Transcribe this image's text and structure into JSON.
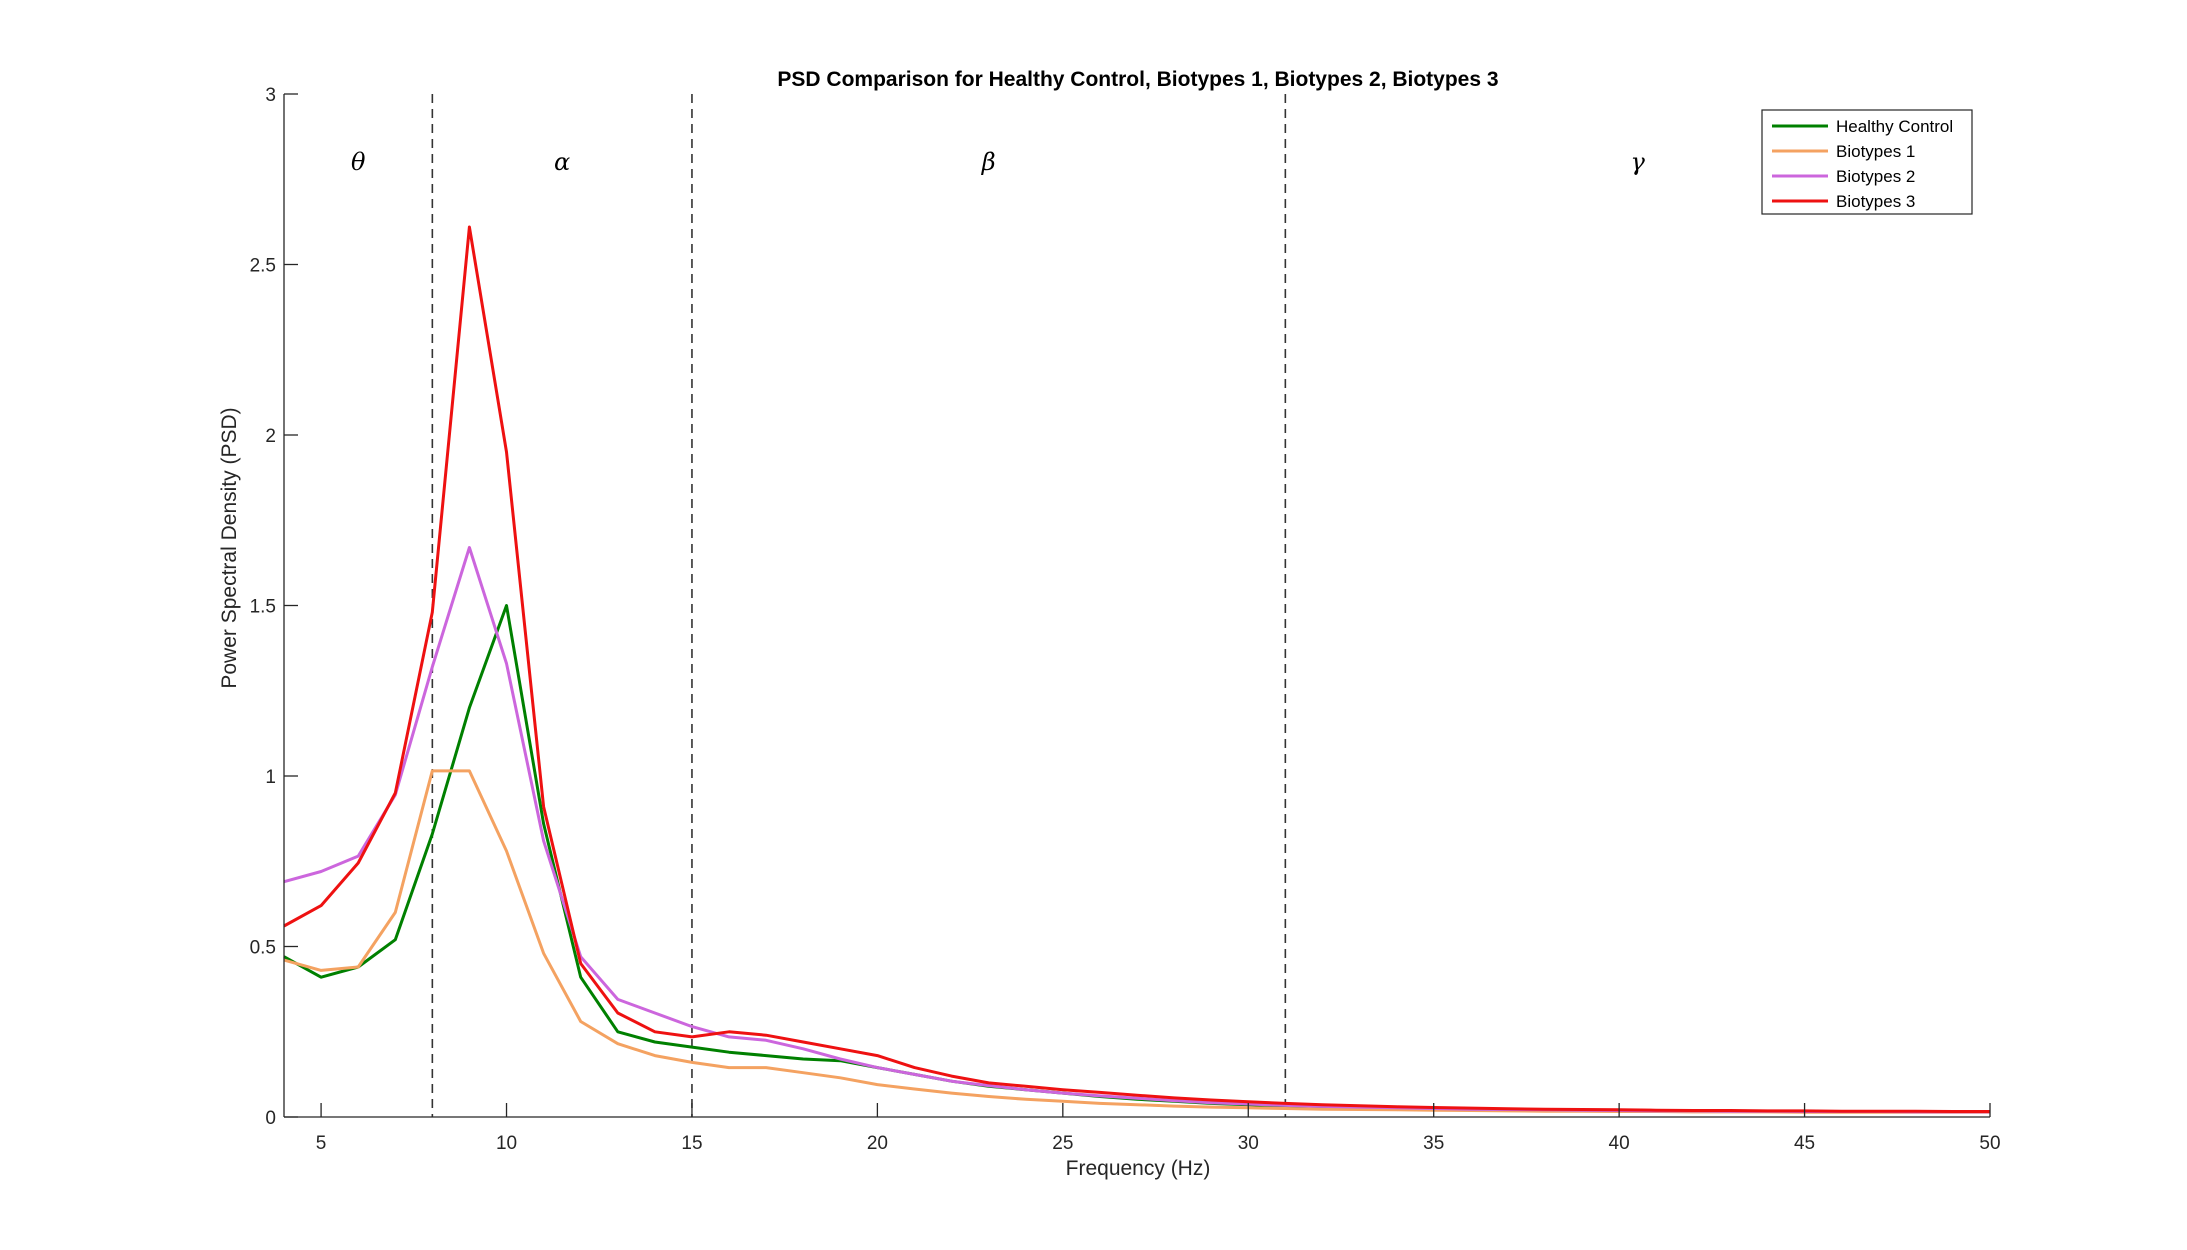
{
  "chart_data": {
    "type": "line",
    "title": "PSD Comparison for Healthy Control, Biotypes 1, Biotypes 2, Biotypes 3",
    "xlabel": "Frequency (Hz)",
    "ylabel": "Power Spectral Density (PSD)",
    "xlim": [
      4,
      50
    ],
    "ylim": [
      0,
      3
    ],
    "xticks": [
      5,
      10,
      15,
      20,
      25,
      30,
      35,
      40,
      45,
      50
    ],
    "yticks": [
      0,
      0.5,
      1,
      1.5,
      2,
      2.5,
      3
    ],
    "xtick_labels": [
      "5",
      "10",
      "15",
      "20",
      "25",
      "30",
      "35",
      "40",
      "45",
      "50"
    ],
    "ytick_labels": [
      "0",
      "0.5",
      "1",
      "1.5",
      "2",
      "2.5",
      "3"
    ],
    "grid": false,
    "legend_position": "top-right",
    "band_boundaries": [
      8,
      15,
      31
    ],
    "bands": [
      {
        "label": "θ",
        "x": 6
      },
      {
        "label": "α",
        "x": 11.5
      },
      {
        "label": "β",
        "x": 23
      },
      {
        "label": "γ",
        "x": 40.5
      }
    ],
    "x": [
      4,
      5,
      6,
      7,
      8,
      9,
      10,
      11,
      12,
      13,
      14,
      15,
      16,
      17,
      18,
      19,
      20,
      21,
      22,
      23,
      24,
      25,
      26,
      27,
      28,
      29,
      30,
      31,
      32,
      33,
      34,
      35,
      36,
      37,
      38,
      39,
      40,
      41,
      42,
      43,
      44,
      45,
      46,
      47,
      48,
      49,
      50
    ],
    "series": [
      {
        "name": "Healthy Control",
        "color": "#008000",
        "values": [
          0.47,
          0.41,
          0.44,
          0.52,
          0.83,
          1.2,
          1.5,
          0.86,
          0.41,
          0.25,
          0.22,
          0.205,
          0.19,
          0.18,
          0.17,
          0.165,
          0.145,
          0.125,
          0.105,
          0.09,
          0.08,
          0.07,
          0.06,
          0.052,
          0.046,
          0.04,
          0.036,
          0.032,
          0.03,
          0.028,
          0.026,
          0.024,
          0.022,
          0.021,
          0.02,
          0.019,
          0.018,
          0.018,
          0.017,
          0.017,
          0.016,
          0.016,
          0.015,
          0.015,
          0.015,
          0.015,
          0.015
        ]
      },
      {
        "name": "Biotypes 1",
        "color": "#f4a261",
        "values": [
          0.46,
          0.43,
          0.44,
          0.6,
          1.015,
          1.015,
          0.78,
          0.48,
          0.28,
          0.215,
          0.18,
          0.16,
          0.145,
          0.145,
          0.13,
          0.115,
          0.095,
          0.082,
          0.07,
          0.06,
          0.052,
          0.046,
          0.04,
          0.036,
          0.032,
          0.029,
          0.027,
          0.025,
          0.023,
          0.022,
          0.021,
          0.02,
          0.019,
          0.018,
          0.017,
          0.017,
          0.016,
          0.016,
          0.015,
          0.015,
          0.015,
          0.014,
          0.014,
          0.014,
          0.014,
          0.014,
          0.014
        ]
      },
      {
        "name": "Biotypes 2",
        "color": "#cc66dd",
        "values": [
          0.69,
          0.72,
          0.765,
          0.945,
          1.32,
          1.67,
          1.33,
          0.81,
          0.47,
          0.345,
          0.305,
          0.265,
          0.235,
          0.225,
          0.2,
          0.17,
          0.145,
          0.125,
          0.105,
          0.092,
          0.08,
          0.07,
          0.062,
          0.055,
          0.048,
          0.042,
          0.038,
          0.034,
          0.031,
          0.029,
          0.027,
          0.025,
          0.023,
          0.022,
          0.021,
          0.02,
          0.019,
          0.018,
          0.018,
          0.017,
          0.017,
          0.016,
          0.016,
          0.016,
          0.015,
          0.015,
          0.015
        ]
      },
      {
        "name": "Biotypes 3",
        "color": "#ee1111",
        "values": [
          0.56,
          0.62,
          0.745,
          0.95,
          1.48,
          2.61,
          1.95,
          0.91,
          0.45,
          0.305,
          0.25,
          0.235,
          0.25,
          0.24,
          0.22,
          0.2,
          0.18,
          0.145,
          0.12,
          0.1,
          0.09,
          0.08,
          0.072,
          0.064,
          0.056,
          0.05,
          0.045,
          0.04,
          0.036,
          0.033,
          0.03,
          0.028,
          0.026,
          0.024,
          0.023,
          0.022,
          0.021,
          0.02,
          0.019,
          0.019,
          0.018,
          0.018,
          0.017,
          0.017,
          0.017,
          0.016,
          0.016
        ]
      }
    ]
  }
}
